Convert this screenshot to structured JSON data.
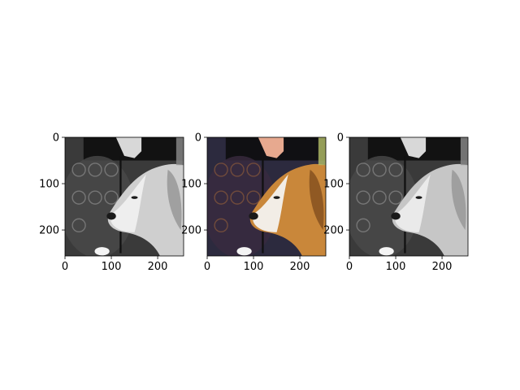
{
  "figure": {
    "background": "#ffffff",
    "panel_count": 3
  },
  "chart_data": [
    {
      "type": "image",
      "panel": "grayscale",
      "image_size": [
        256,
        256
      ],
      "xlim": [
        0,
        256
      ],
      "ylim": [
        256,
        0
      ],
      "x_ticks": [
        0,
        100,
        200
      ],
      "y_ticks": [
        0,
        100,
        200
      ],
      "x_tick_labels": [
        "0",
        "100",
        "200"
      ],
      "y_tick_labels": [
        "0",
        "100",
        "200"
      ],
      "content": "dog on leash, grayscale",
      "colors": {
        "background": "#3a3a3a",
        "dog": "#cfcfcf",
        "muzzle": "#eeeeee",
        "hand": "#d8d8d8"
      }
    },
    {
      "type": "image",
      "panel": "color",
      "image_size": [
        256,
        256
      ],
      "xlim": [
        0,
        256
      ],
      "ylim": [
        256,
        0
      ],
      "x_ticks": [
        0,
        100,
        200
      ],
      "y_ticks": [
        0,
        100,
        200
      ],
      "x_tick_labels": [
        "0",
        "100",
        "200"
      ],
      "y_tick_labels": [
        "0",
        "100",
        "200"
      ],
      "content": "dog on leash, color",
      "colors": {
        "background": "#2c2a3e",
        "dog": "#c9873a",
        "muzzle": "#f2ede6",
        "hand": "#e7a98f"
      }
    },
    {
      "type": "image",
      "panel": "grayscale-processed",
      "image_size": [
        256,
        256
      ],
      "xlim": [
        0,
        256
      ],
      "ylim": [
        256,
        0
      ],
      "x_ticks": [
        0,
        100,
        200
      ],
      "y_ticks": [
        0,
        100,
        200
      ],
      "x_tick_labels": [
        "0",
        "100",
        "200"
      ],
      "y_tick_labels": [
        "0",
        "100",
        "200"
      ],
      "content": "dog on leash, grayscale",
      "colors": {
        "background": "#3a3a3a",
        "dog": "#c6c6c6",
        "muzzle": "#eaeaea",
        "hand": "#d8d8d8"
      }
    }
  ]
}
